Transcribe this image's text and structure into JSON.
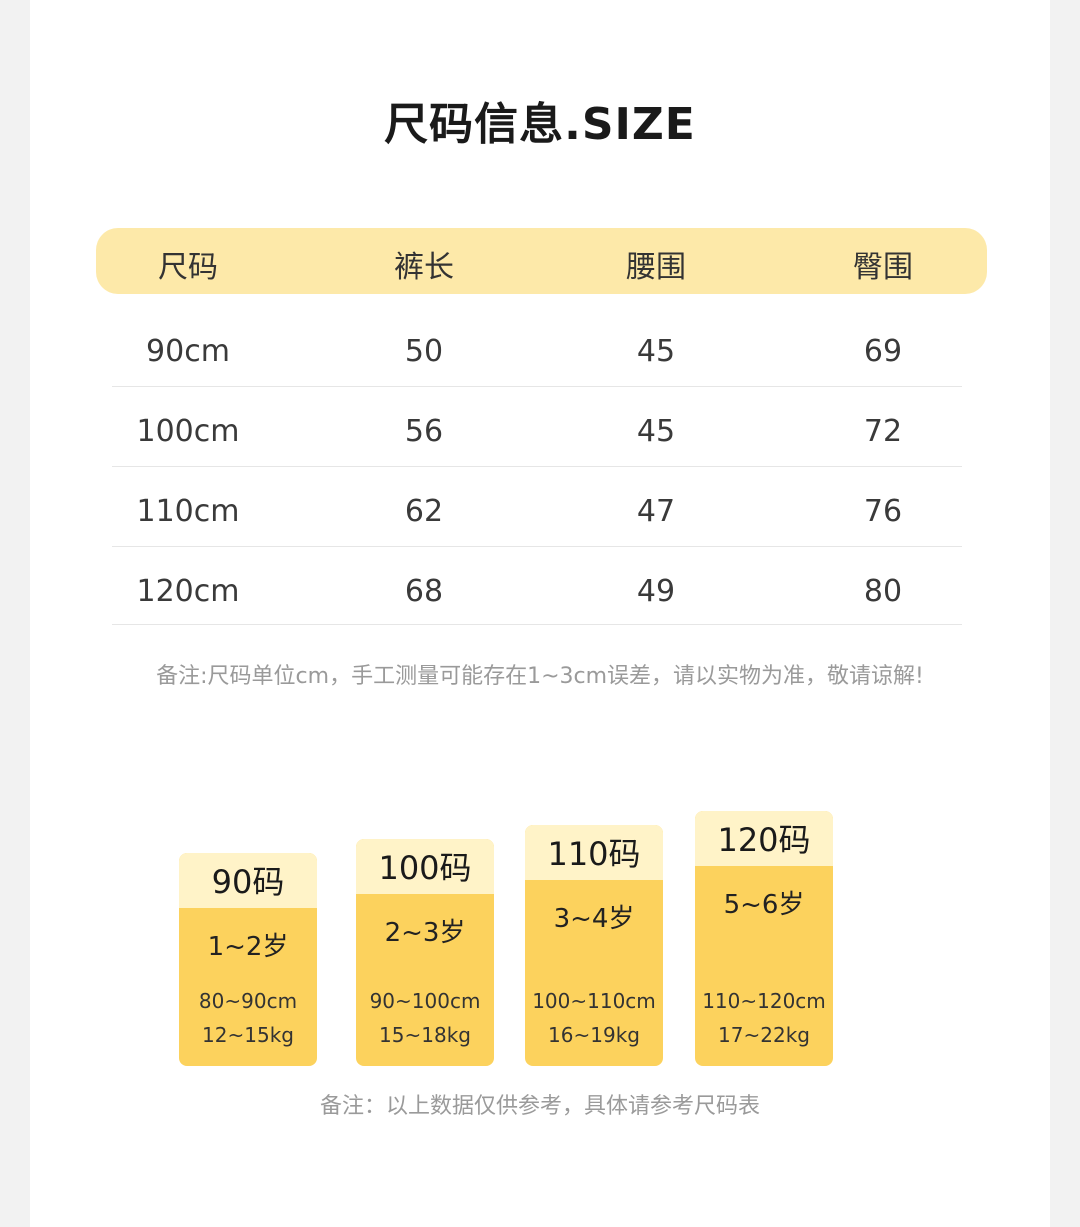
{
  "title": "尺码信息.SIZE",
  "table": {
    "headers": [
      "尺码",
      "裤长",
      "腰围",
      "臀围"
    ],
    "rows": [
      [
        "90cm",
        "50",
        "45",
        "69"
      ],
      [
        "100cm",
        "56",
        "45",
        "72"
      ],
      [
        "110cm",
        "62",
        "47",
        "76"
      ],
      [
        "120cm",
        "68",
        "49",
        "80"
      ]
    ]
  },
  "table_note": "备注:尺码单位cm，手工测量可能存在1~3cm误差，请以实物为准，敬请谅解!",
  "cards": [
    {
      "size": "90码",
      "age": "1~2岁",
      "height": "80~90cm",
      "weight": "12~15kg"
    },
    {
      "size": "100码",
      "age": "2~3岁",
      "height": "90~100cm",
      "weight": "15~18kg"
    },
    {
      "size": "110码",
      "age": "3~4岁",
      "height": "100~110cm",
      "weight": "16~19kg"
    },
    {
      "size": "120码",
      "age": "5~6岁",
      "height": "110~120cm",
      "weight": "17~22kg"
    }
  ],
  "cards_note": "备注：以上数据仅供参考，具体请参考尺码表",
  "colors": {
    "header_bg": "#fde9a9",
    "card_body": "#fcd25d",
    "card_header": "#fff3c8"
  }
}
